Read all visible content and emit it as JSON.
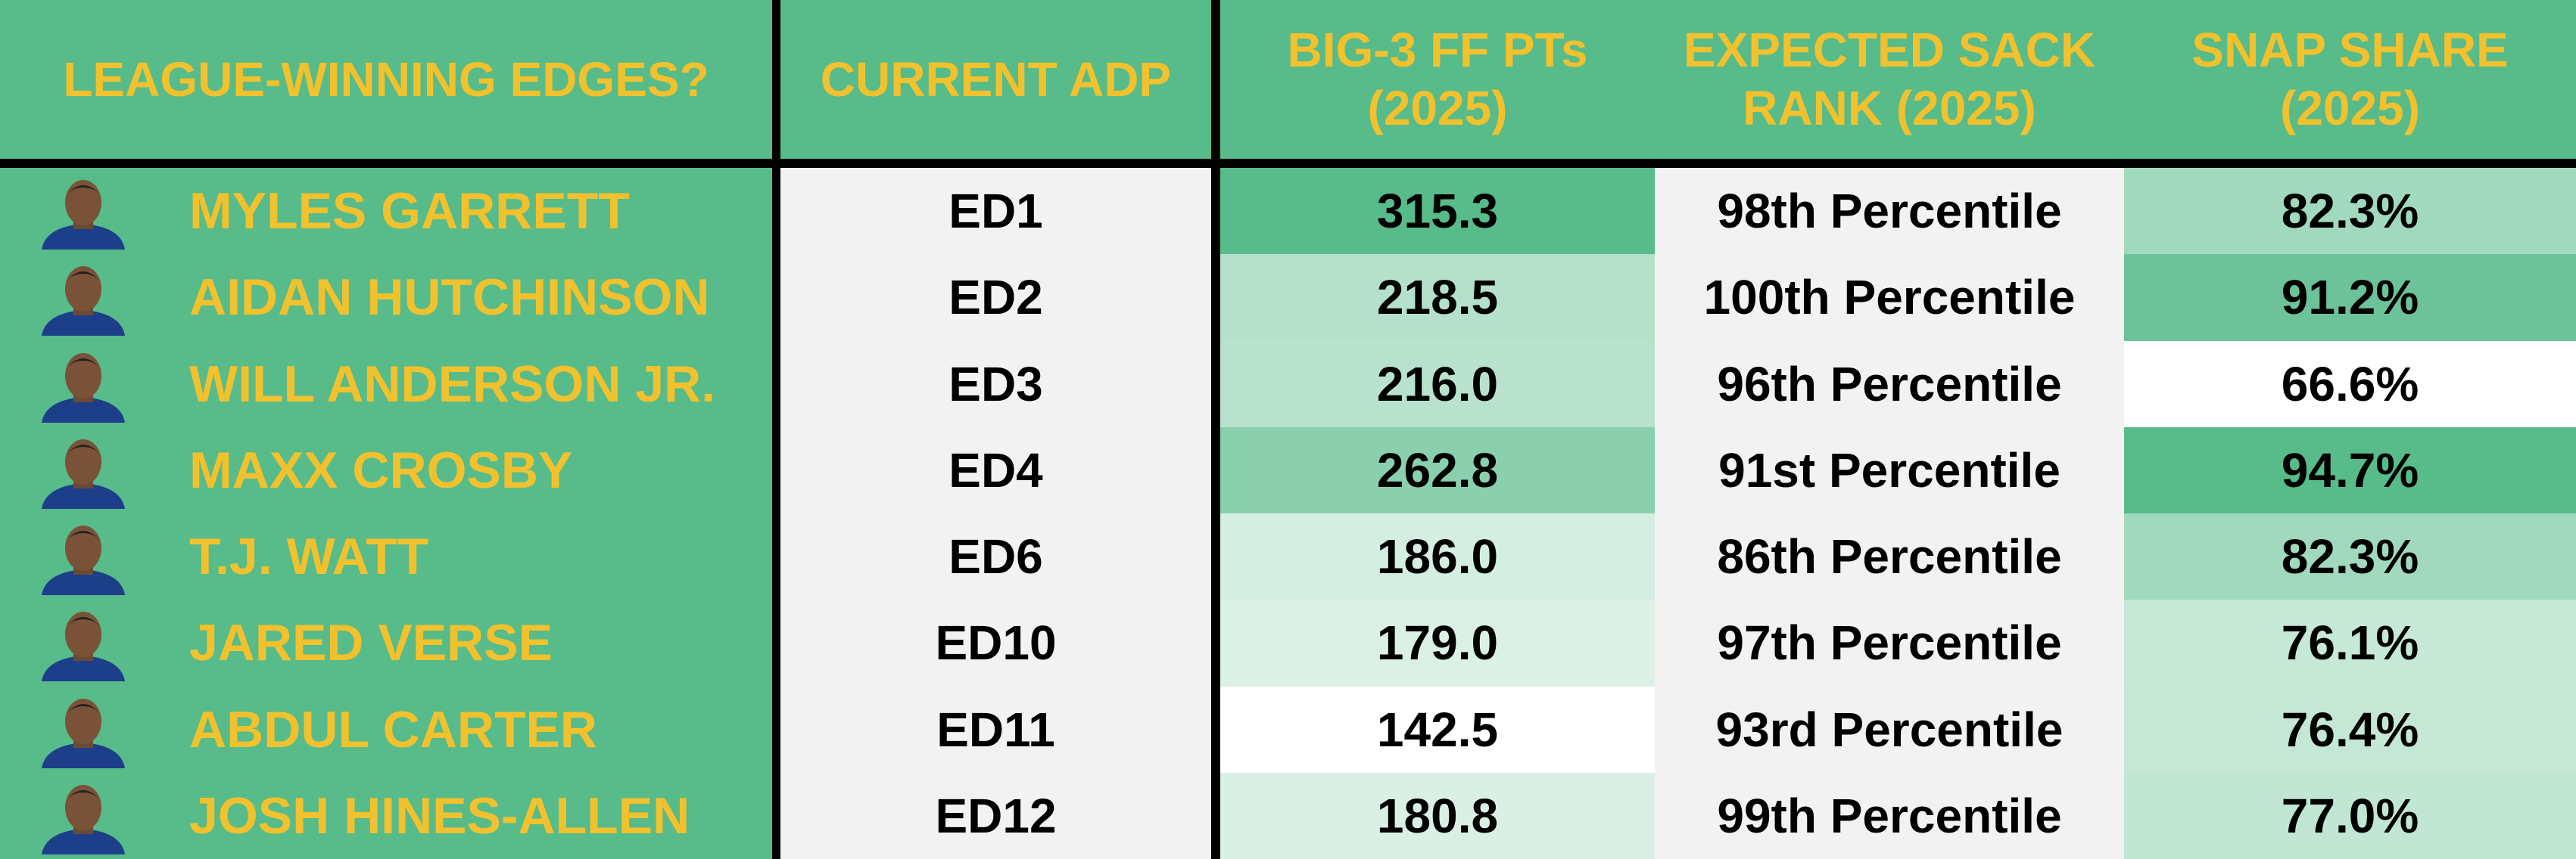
{
  "header": {
    "title": "LEAGUE-WINNING EDGES?",
    "columns": [
      "CURRENT ADP",
      "BIG-3 FF PTs (2025)",
      "EXPECTED SACK RANK (2025)",
      "SNAP SHARE (2025)"
    ]
  },
  "rows": [
    [
      "MYLES GARRETT",
      "ED1",
      "315.3",
      "98th Percentile",
      "82.3%"
    ],
    [
      "AIDAN HUTCHINSON",
      "ED2",
      "218.5",
      "100th Percentile",
      "91.2%"
    ],
    [
      "WILL ANDERSON JR.",
      "ED3",
      "216.0",
      "96th Percentile",
      "66.6%"
    ],
    [
      "MAXX CROSBY",
      "ED4",
      "262.8",
      "91st Percentile",
      "94.7%"
    ],
    [
      "T.J. WATT",
      "ED6",
      "186.0",
      "86th Percentile",
      "82.3%"
    ],
    [
      "JARED VERSE",
      "ED10",
      "179.0",
      "97th Percentile",
      "76.1%"
    ],
    [
      "ABDUL CARTER",
      "ED11",
      "142.5",
      "93rd Percentile",
      "76.4%"
    ],
    [
      "JOSH HINES-ALLEN",
      "ED12",
      "180.8",
      "99th Percentile",
      "77.0%"
    ]
  ]
}
